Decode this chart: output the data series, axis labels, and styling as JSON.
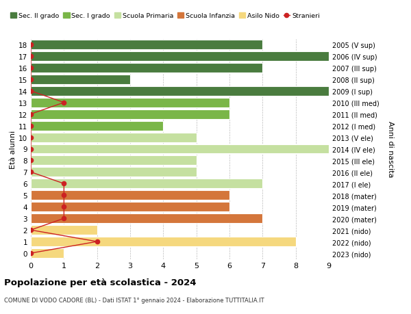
{
  "ages": [
    18,
    17,
    16,
    15,
    14,
    13,
    12,
    11,
    10,
    9,
    8,
    7,
    6,
    5,
    4,
    3,
    2,
    1,
    0
  ],
  "years": [
    "2005 (V sup)",
    "2006 (IV sup)",
    "2007 (III sup)",
    "2008 (II sup)",
    "2009 (I sup)",
    "2010 (III med)",
    "2011 (II med)",
    "2012 (I med)",
    "2013 (V ele)",
    "2014 (IV ele)",
    "2015 (III ele)",
    "2016 (II ele)",
    "2017 (I ele)",
    "2018 (mater)",
    "2019 (mater)",
    "2020 (mater)",
    "2021 (nido)",
    "2022 (nido)",
    "2023 (nido)"
  ],
  "bar_values": [
    7,
    9,
    7,
    3,
    9,
    6,
    6,
    4,
    5,
    9,
    5,
    5,
    7,
    6,
    6,
    7,
    2,
    8,
    1
  ],
  "bar_colors": [
    "#4a7c3f",
    "#4a7c3f",
    "#4a7c3f",
    "#4a7c3f",
    "#4a7c3f",
    "#7ab648",
    "#7ab648",
    "#7ab648",
    "#c5e0a0",
    "#c5e0a0",
    "#c5e0a0",
    "#c5e0a0",
    "#c5e0a0",
    "#d4763b",
    "#d4763b",
    "#d4763b",
    "#f5d87e",
    "#f5d87e",
    "#f5d87e"
  ],
  "stranieri_values": [
    0,
    0,
    0,
    0,
    0,
    1,
    0,
    0,
    0,
    0,
    0,
    0,
    1,
    1,
    1,
    1,
    0,
    2,
    0
  ],
  "stranieri_color": "#cc2222",
  "legend_labels": [
    "Sec. II grado",
    "Sec. I grado",
    "Scuola Primaria",
    "Scuola Infanzia",
    "Asilo Nido",
    "Stranieri"
  ],
  "legend_colors": [
    "#4a7c3f",
    "#7ab648",
    "#c5e0a0",
    "#d4763b",
    "#f5d87e",
    "#cc2222"
  ],
  "ylabel": "Età alunni",
  "ylabel2": "Anni di nascita",
  "title": "Popolazione per età scolastica - 2024",
  "subtitle": "COMUNE DI VODO CADORE (BL) - Dati ISTAT 1° gennaio 2024 - Elaborazione TUTTITALIA.IT",
  "xlim": [
    0,
    9
  ],
  "ylim": [
    -0.5,
    18.5
  ],
  "background_color": "#ffffff",
  "grid_color": "#bbbbbb"
}
